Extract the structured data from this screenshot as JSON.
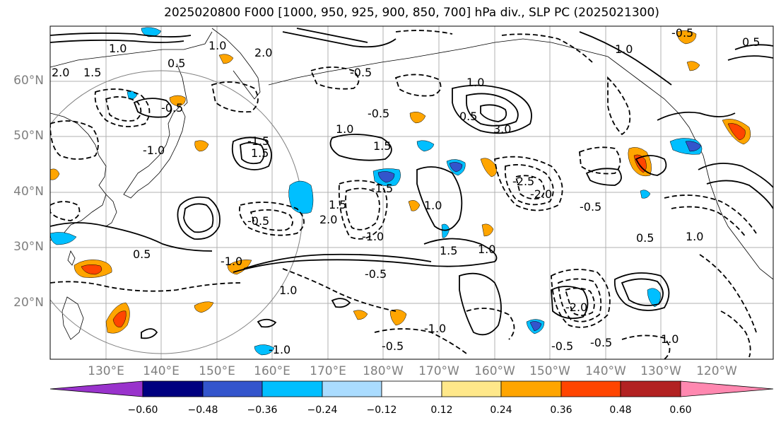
{
  "title": "2025020800 F000 [1000, 950, 925, 900, 850, 700] hPa div., SLP PC (2025021300)",
  "lat_labels": [
    "60°N",
    "50°N",
    "40°N",
    "30°N",
    "20°N"
  ],
  "lon_labels": [
    "130°E",
    "140°E",
    "150°E",
    "160°E",
    "170°E",
    "180°W",
    "170°W",
    "160°W",
    "150°W",
    "140°W",
    "130°W",
    "120°W"
  ],
  "colorbar": {
    "ticks": [
      "−0.60",
      "−0.48",
      "−0.36",
      "−0.24",
      "−0.12",
      "0.12",
      "0.24",
      "0.36",
      "0.48",
      "0.60"
    ],
    "colors": [
      "#9933cc",
      "#000080",
      "#3355cc",
      "#00bfff",
      "#aadcff",
      "#ffffff",
      "#ffe88a",
      "#ffa500",
      "#ff4500",
      "#b22222",
      "#ff88b0"
    ]
  },
  "contour_labels": [
    "1.5",
    "2.0",
    "1.0",
    "0.5",
    "-0.5",
    "-1.0",
    "-1.5",
    "2.0",
    "1.0",
    "1.5",
    "-0.5",
    "-1.0",
    "0.5",
    "3.0",
    "2.0",
    "1.5",
    "-0.5",
    "1.0",
    "-0.5",
    "-1.0",
    "1.0",
    "1.0",
    "-0.5",
    "1.0",
    "0.5",
    "-2.0",
    "-2.5",
    "-0.5",
    "1.0",
    "0.5",
    "-0.5",
    "-1.0",
    "1.0",
    "-0.5",
    "1.0",
    "-0.5",
    "0.5",
    "-1.5",
    "1.5",
    "1.5",
    "1.0",
    "-2.0",
    "-0.5",
    "-1.0"
  ]
}
